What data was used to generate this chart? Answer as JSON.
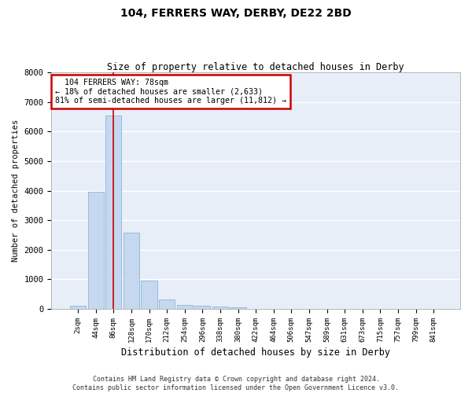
{
  "title": "104, FERRERS WAY, DERBY, DE22 2BD",
  "subtitle": "Size of property relative to detached houses in Derby",
  "xlabel": "Distribution of detached houses by size in Derby",
  "ylabel": "Number of detached properties",
  "bar_color": "#c5d8f0",
  "bar_edge_color": "#7aadd4",
  "background_color": "#e8eef8",
  "grid_color": "#ffffff",
  "categories": [
    "2sqm",
    "44sqm",
    "86sqm",
    "128sqm",
    "170sqm",
    "212sqm",
    "254sqm",
    "296sqm",
    "338sqm",
    "380sqm",
    "422sqm",
    "464sqm",
    "506sqm",
    "547sqm",
    "589sqm",
    "631sqm",
    "673sqm",
    "715sqm",
    "757sqm",
    "799sqm",
    "841sqm"
  ],
  "values": [
    100,
    3950,
    6550,
    2580,
    950,
    320,
    130,
    110,
    75,
    55,
    0,
    0,
    0,
    0,
    0,
    0,
    0,
    0,
    0,
    0,
    0
  ],
  "property_line_x": 1.98,
  "property_sqm": 78,
  "pct_smaller": 18,
  "count_smaller": 2633,
  "pct_larger_semi": 81,
  "count_larger_semi": 11812,
  "annotation_box_color": "#cc0000",
  "vline_color": "#cc0000",
  "ylim": [
    0,
    8000
  ],
  "yticks": [
    0,
    1000,
    2000,
    3000,
    4000,
    5000,
    6000,
    7000,
    8000
  ],
  "footer_line1": "Contains HM Land Registry data © Crown copyright and database right 2024.",
  "footer_line2": "Contains public sector information licensed under the Open Government Licence v3.0."
}
